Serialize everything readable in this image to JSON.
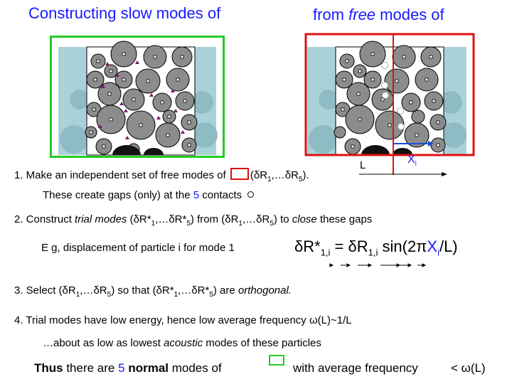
{
  "titles": {
    "left": "Constructing slow modes of",
    "right_prefix": "from ",
    "right_italic": "free",
    "right_suffix": " modes of"
  },
  "diagram_labels": {
    "L": "L",
    "X": "X",
    "X_sub": "i"
  },
  "steps": {
    "s1": {
      "text": "1. Make an independent set of free modes of",
      "paren": "(δR",
      "sub1": "1",
      "mid": ",…δR",
      "sub5": "5",
      "close": ")."
    },
    "s1b": {
      "pre": "These create gaps (only) at the ",
      "num": "5",
      "post": " contacts"
    },
    "s2": {
      "p1": "2. Construct ",
      "italic1": "trial modes",
      "p2": " (δR*",
      "s1": "1",
      "p3": ",…δR*",
      "s5": "5",
      "p4": ") from (δR",
      "s6": "1",
      "p5": ",…δR",
      "s7": "5",
      "p6": ") to ",
      "italic2": "close",
      "p7": " these gaps"
    },
    "example": "E g, displacement of particle i for mode 1",
    "formula": {
      "lhs": "δR*",
      "lhs_sub": "1,i",
      "eq": " = δR",
      "rhs_sub": "1,i",
      "sin": "  sin(2π",
      "X": "X",
      "X_sub": "i",
      "end": "/L)"
    },
    "s3": {
      "p1": "3. Select (δR",
      "a": "1",
      "p2": ",…δR",
      "b": "5",
      "p3": ") so that (δR*",
      "c": "1",
      "p4": ",…δR*",
      "d": "5",
      "p5": ")  are ",
      "italic": "orthogonal."
    },
    "s4": "4. Trial modes have low energy, hence low average frequency ω(L)~1/L",
    "s4b": {
      "pre": "…about as low as lowest ",
      "italic": "acoustic",
      "post": " modes of these particles"
    },
    "thus": {
      "bold1": "Thus",
      "p1": " there are ",
      "num": "5",
      "p2": " ",
      "bold2": "normal",
      "p3": " modes of",
      "p4": "with average frequency",
      "p5": "< ω(L)"
    }
  },
  "colors": {
    "title_blue": "#1a1aff",
    "green_box": "#22cc22",
    "red_box": "#dd1111",
    "arrow_blue": "#1a4fd6",
    "particle_fill": "#8c8c8c",
    "background_particles": "#a9d2d8"
  }
}
